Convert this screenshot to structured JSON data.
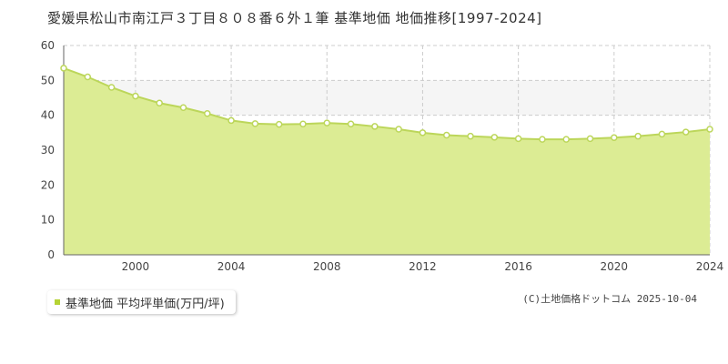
{
  "title": "愛媛県松山市南江戸３丁目８０８番６外１筆 基準地価 地価推移[1997-2024]",
  "copyright": "(C)土地価格ドットコム 2025-10-04",
  "colors": {
    "fill": "#dcec94",
    "line": "#bcd65a",
    "point_fill": "#ffffff",
    "band": "#f5f5f5",
    "grid": "#cccccc",
    "legend_marker": "#b5d334"
  },
  "chart_data": {
    "type": "area",
    "xlim": [
      1997,
      2024
    ],
    "ylim": [
      0,
      60
    ],
    "x_ticks": [
      2000,
      2004,
      2008,
      2012,
      2016,
      2020,
      2024
    ],
    "y_ticks": [
      0,
      10,
      20,
      30,
      40,
      50,
      60
    ],
    "grid": true,
    "shaded_band": [
      40,
      50
    ],
    "legend_placement": "bottom-left",
    "series": [
      {
        "name": "基準地価 平均坪単価(万円/坪)",
        "x": [
          1997,
          1998,
          1999,
          2000,
          2001,
          2002,
          2003,
          2004,
          2005,
          2006,
          2007,
          2008,
          2009,
          2010,
          2011,
          2012,
          2013,
          2014,
          2015,
          2016,
          2017,
          2018,
          2019,
          2020,
          2021,
          2022,
          2023,
          2024
        ],
        "values": [
          53.5,
          51.0,
          48.0,
          45.5,
          43.5,
          42.2,
          40.5,
          38.5,
          37.6,
          37.4,
          37.5,
          37.8,
          37.5,
          36.8,
          36.0,
          35.0,
          34.3,
          34.0,
          33.7,
          33.3,
          33.1,
          33.1,
          33.3,
          33.6,
          34.0,
          34.6,
          35.2,
          36.0
        ]
      }
    ]
  }
}
